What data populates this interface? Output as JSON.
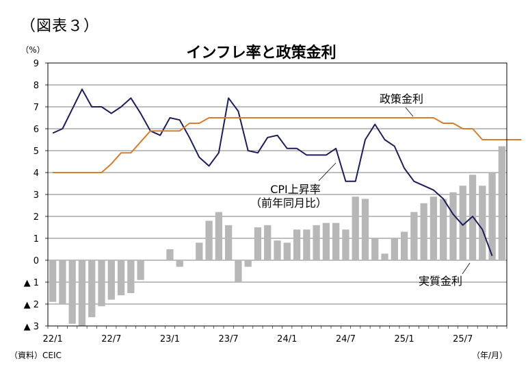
{
  "figure_label": "（図表３）",
  "chart_data": {
    "type": "bar+line",
    "title": "インフレ率と政策金利",
    "unit_label": "（%）",
    "source": "（資料）CEIC",
    "x_unit": "（年/月）",
    "ylim": [
      -3,
      9
    ],
    "y_ticks": [
      {
        "v": 9,
        "label": "9"
      },
      {
        "v": 8,
        "label": "8"
      },
      {
        "v": 7,
        "label": "7"
      },
      {
        "v": 6,
        "label": "6"
      },
      {
        "v": 5,
        "label": "5"
      },
      {
        "v": 4,
        "label": "4"
      },
      {
        "v": 3,
        "label": "3"
      },
      {
        "v": 2,
        "label": "2"
      },
      {
        "v": 1,
        "label": "1"
      },
      {
        "v": 0,
        "label": "0"
      },
      {
        "v": -1,
        "label": "▲ 1"
      },
      {
        "v": -2,
        "label": "▲ 2"
      },
      {
        "v": -3,
        "label": "▲ 3"
      }
    ],
    "x_ticks": [
      {
        "i": 0,
        "label": "22/1"
      },
      {
        "i": 6,
        "label": "22/7"
      },
      {
        "i": 12,
        "label": "23/1"
      },
      {
        "i": 18,
        "label": "23/7"
      },
      {
        "i": 24,
        "label": "24/1"
      },
      {
        "i": 30,
        "label": "24/7"
      },
      {
        "i": 36,
        "label": "25/1"
      },
      {
        "i": 42,
        "label": "25/7"
      }
    ],
    "grid": "horizontal",
    "series": [
      {
        "name": "実質金利",
        "kind": "bar",
        "color": "#b7b7b7",
        "values": [
          -1.9,
          -2.0,
          -2.9,
          -3.0,
          -2.6,
          -2.1,
          -1.8,
          -1.6,
          -1.5,
          -0.9,
          null,
          null,
          0.5,
          -0.3,
          0.0,
          0.8,
          1.8,
          2.2,
          1.6,
          -1.0,
          -0.3,
          1.5,
          1.6,
          0.9,
          0.8,
          1.4,
          1.4,
          1.6,
          1.7,
          1.7,
          1.4,
          2.9,
          2.8,
          1.0,
          0.3,
          1.0,
          1.3,
          2.2,
          2.6,
          2.9,
          2.8,
          3.1,
          3.4,
          3.9,
          3.4,
          4.0,
          5.2
        ]
      },
      {
        "name": "CPI上昇率（前年同月比）",
        "kind": "line",
        "color": "#1c1c5e",
        "values": [
          5.8,
          6.0,
          6.9,
          7.8,
          7.0,
          7.0,
          6.7,
          7.0,
          7.4,
          6.7,
          5.9,
          5.7,
          6.5,
          6.4,
          5.6,
          4.7,
          4.3,
          4.9,
          7.4,
          6.8,
          5.0,
          4.9,
          5.6,
          5.7,
          5.1,
          5.1,
          4.8,
          4.8,
          4.8,
          5.1,
          3.6,
          3.6,
          5.5,
          6.2,
          5.5,
          5.2,
          4.2,
          3.6,
          3.4,
          3.2,
          2.8,
          2.1,
          1.6,
          2.0,
          1.4,
          0.2
        ]
      },
      {
        "name": "政策金利",
        "kind": "line",
        "color": "#d77c2a",
        "values": [
          4.0,
          4.0,
          4.0,
          4.0,
          4.0,
          4.0,
          4.4,
          4.9,
          4.9,
          5.4,
          5.9,
          5.9,
          5.9,
          5.9,
          6.25,
          6.25,
          6.5,
          6.5,
          6.5,
          6.5,
          6.5,
          6.5,
          6.5,
          6.5,
          6.5,
          6.5,
          6.5,
          6.5,
          6.5,
          6.5,
          6.5,
          6.5,
          6.5,
          6.5,
          6.5,
          6.5,
          6.5,
          6.5,
          6.5,
          6.5,
          6.25,
          6.25,
          6.0,
          6.0,
          5.5,
          5.5,
          5.5,
          5.5,
          5.5
        ]
      }
    ],
    "annotations": {
      "policy_rate": "政策金利",
      "cpi_line1": "CPI上昇率",
      "cpi_line2": "（前年同月比）",
      "real_rate": "実質金利"
    }
  }
}
